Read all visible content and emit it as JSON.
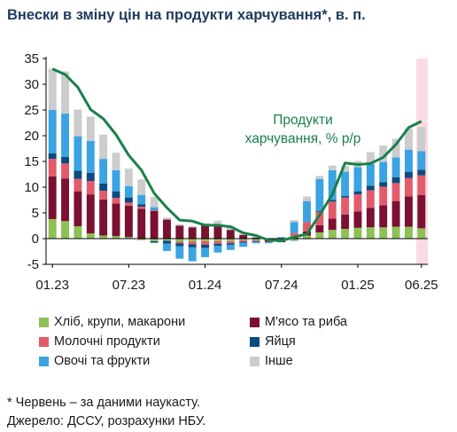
{
  "title": "Внески в зміну цін на продукти харчування*, в. п.",
  "footnote": "* Червень – за даними наукасту.",
  "source": "Джерело: ДССУ, розрахунки НБУ.",
  "colors": {
    "bread": "#8cc153",
    "meat": "#7b1030",
    "dairy": "#e35b6a",
    "eggs": "#0d4b7e",
    "vegfruit": "#3aa3e3",
    "other": "#cccccc",
    "line": "#18814a",
    "highlight": "#f9dbe3",
    "axis": "#000000"
  },
  "chart_data": {
    "type": "bar",
    "stacked": true,
    "highlight_last_period": true,
    "categories": [
      "01.23",
      "02.23",
      "03.23",
      "04.23",
      "05.23",
      "06.23",
      "07.23",
      "08.23",
      "09.23",
      "10.23",
      "11.23",
      "12.23",
      "01.24",
      "02.24",
      "03.24",
      "04.24",
      "05.24",
      "06.24",
      "07.24",
      "08.24",
      "09.24",
      "10.24",
      "11.24",
      "12.24",
      "01.25",
      "02.25",
      "03.25",
      "04.25",
      "05.25",
      "06.25"
    ],
    "x_tick_labels": [
      "01.23",
      "07.23",
      "01.24",
      "07.24",
      "01.25",
      "06.25"
    ],
    "y_ticks": [
      -5,
      0,
      5,
      10,
      15,
      20,
      25,
      30,
      35
    ],
    "ylim": [
      -5,
      35
    ],
    "series": [
      {
        "name": "Хліб, крупи, макарони",
        "color_key": "bread",
        "values": [
          3.8,
          3.4,
          2.4,
          1.0,
          0.6,
          0.5,
          0.3,
          -0.3,
          -0.5,
          -0.4,
          -0.6,
          -0.6,
          -0.5,
          -0.5,
          -0.5,
          -0.3,
          -0.3,
          -0.3,
          -0.4,
          -0.3,
          0.6,
          1.2,
          1.7,
          1.9,
          2.1,
          2.2,
          2.2,
          2.3,
          2.3,
          2.0
        ]
      },
      {
        "name": "М'ясо та риба",
        "color_key": "meat",
        "values": [
          8.3,
          8.3,
          6.8,
          7.6,
          7.0,
          6.3,
          6.1,
          5.8,
          5.4,
          3.7,
          2.5,
          2.2,
          2.6,
          2.5,
          1.7,
          0.7,
          0.2,
          -0.3,
          -0.2,
          0.3,
          0.8,
          1.4,
          2.2,
          2.8,
          3.2,
          3.8,
          4.3,
          5.0,
          5.9,
          6.5
        ]
      },
      {
        "name": "Молочні продукти",
        "color_key": "dairy",
        "values": [
          3.4,
          2.9,
          2.4,
          2.6,
          1.7,
          1.1,
          0.6,
          0.4,
          0.1,
          0,
          -0.3,
          -0.5,
          -0.7,
          -0.5,
          -0.4,
          -0.3,
          -0.2,
          -0.1,
          0.1,
          0.8,
          1.8,
          2.6,
          3.3,
          3.3,
          3.3,
          3.4,
          3.6,
          3.5,
          3.6,
          3.8
        ]
      },
      {
        "name": "Яйця",
        "color_key": "eggs",
        "values": [
          1.1,
          1.3,
          1.6,
          1.6,
          1.4,
          1.3,
          1.0,
          0.5,
          -0.3,
          -0.6,
          -0.6,
          -0.6,
          -0.6,
          -0.4,
          -0.3,
          -0.2,
          -0.1,
          0,
          -0.1,
          -0.1,
          -0.1,
          0.2,
          0.3,
          0.3,
          0.6,
          0.9,
          0.9,
          1.1,
          1.2,
          1.1
        ]
      },
      {
        "name": "Овочі та фрукти",
        "color_key": "vegfruit",
        "values": [
          8.4,
          8.4,
          6.7,
          6.2,
          4.8,
          4.1,
          2.2,
          1.8,
          0.6,
          -1.4,
          -2.4,
          -2.7,
          -1.8,
          -1.3,
          -1.0,
          -0.8,
          -0.3,
          -0.2,
          0.2,
          2.1,
          4.1,
          6.2,
          5.8,
          4.7,
          4.7,
          4.2,
          3.9,
          3.9,
          4.3,
          3.6
        ]
      },
      {
        "name": "Інше",
        "color_key": "other",
        "values": [
          8.0,
          8.2,
          5.2,
          4.7,
          4.7,
          3.4,
          3.4,
          3.0,
          2.0,
          0.4,
          0.3,
          0.2,
          0.4,
          1.0,
          0.8,
          0.3,
          0.2,
          0.0,
          0.0,
          0.4,
          0.9,
          0.6,
          0.9,
          1.1,
          1.2,
          2.3,
          3.2,
          3.6,
          4.1,
          4.7
        ]
      }
    ],
    "line": {
      "name": "Продукти харчування, % р/р",
      "values": [
        33.0,
        31.9,
        29.4,
        25.1,
        23.3,
        20.2,
        16.2,
        13.3,
        8.8,
        6.0,
        3.6,
        3.4,
        2.6,
        2.6,
        2.3,
        1.1,
        0.6,
        -0.3,
        -0.4,
        0.3,
        0.9,
        4.6,
        8.6,
        14.7,
        14.4,
        14.6,
        15.8,
        18.3,
        21.6,
        22.8
      ]
    },
    "line_label_lines": [
      "Продукти",
      "харчування, % р/р"
    ]
  }
}
